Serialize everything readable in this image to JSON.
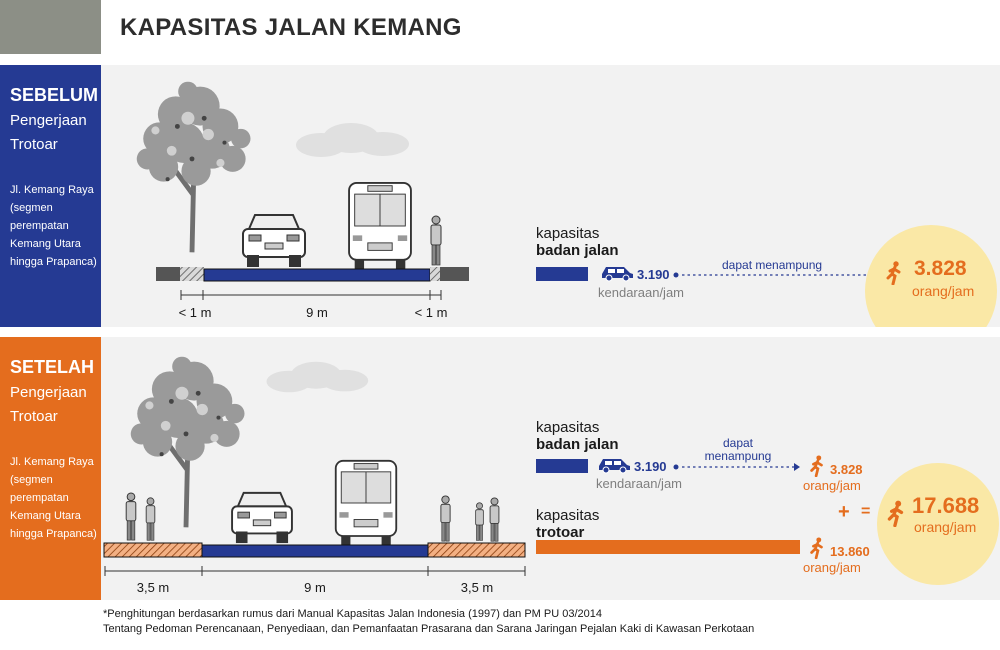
{
  "title": "KAPASITAS JALAN KEMANG",
  "before": {
    "label": "SEBELUM",
    "sublabel_1": "Pengerjaan",
    "sublabel_2": "Trotoar",
    "location": [
      "Jl. Kemang Raya",
      "(segmen",
      "perempatan",
      "Kemang Utara",
      "hingga Prapanca)"
    ],
    "dimensions": [
      "< 1 m",
      "9 m",
      "< 1 m"
    ],
    "road_label_1": "kapasitas",
    "road_label_2": "badan jalan",
    "vehicle_count": "3.190",
    "vehicle_unit": "kendaraan/jam",
    "link_text": "dapat menampung",
    "people_count": "3.828",
    "people_unit": "orang/jam"
  },
  "after": {
    "label": "SETELAH",
    "sublabel_1": "Pengerjaan",
    "sublabel_2": "Trotoar",
    "location": [
      "Jl. Kemang Raya",
      "(segmen",
      "perempatan",
      "Kemang Utara",
      "hingga Prapanca)"
    ],
    "dimensions": [
      "3,5 m",
      "9 m",
      "3,5 m"
    ],
    "road_label_1": "kapasitas",
    "road_label_2": "badan jalan",
    "vehicle_count": "3.190",
    "vehicle_unit": "kendaraan/jam",
    "link_text_1": "dapat",
    "link_text_2": "menampung",
    "road_people_count": "3.828",
    "road_people_unit": "orang/jam",
    "sidewalk_label_1": "kapasitas",
    "sidewalk_label_2": "trotoar",
    "sidewalk_people_count": "13.860",
    "sidewalk_people_unit": "orang/jam",
    "plus_sign": "+",
    "equals_sign": "=",
    "total_count": "17.688",
    "total_unit": "orang/jam"
  },
  "footnote": {
    "line_1": "*Penghitungan berdasarkan rumus dari Manual Kapasitas Jalan Indonesia (1997) dan PM PU 03/2014",
    "line_2": "Tentang Pedoman Perencanaan, Penyediaan, dan Pemanfaatan Prasarana dan Sarana Jaringan Pejalan Kaki di Kawasan Perkotaan"
  },
  "colors": {
    "blue": "#253a93",
    "orange": "#e46d1e",
    "grey": "#8c8f86",
    "circle": "#fae8a6",
    "panel": "#f2f2f2"
  }
}
